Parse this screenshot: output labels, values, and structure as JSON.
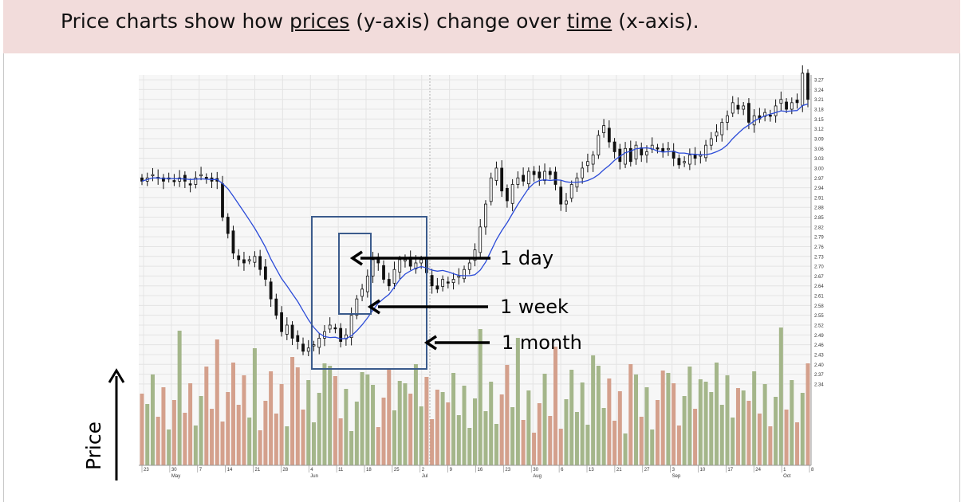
{
  "header": {
    "text_pre": "Price charts show how ",
    "text_prices": "prices",
    "text_mid": " (y-axis) change over ",
    "text_time": "time",
    "text_post": " (x-axis)."
  },
  "axis_side_label": "Price",
  "callouts": {
    "day": "1 day",
    "week": "1 week",
    "month": "1 month"
  },
  "colors": {
    "header_bg": "#f2dcdb",
    "ma_line": "#2b4bd8",
    "volume_up": "#a4b68a",
    "volume_down": "#d4a08c",
    "box": "#3b5b8c"
  },
  "chart_data": {
    "type": "candlestick",
    "title": "",
    "xlabel": "",
    "ylabel": "",
    "ylim": [
      2.33,
      3.28
    ],
    "y_ticks": [
      "3.27",
      "3.24",
      "3.21",
      "3.18",
      "3.15",
      "3.12",
      "3.09",
      "3.06",
      "3.03",
      "3.00",
      "2.97",
      "2.94",
      "2.91",
      "2.88",
      "2.85",
      "2.82",
      "2.79",
      "2.76",
      "2.73",
      "2.70",
      "2.67",
      "2.64",
      "2.61",
      "2.58",
      "2.55",
      "2.52",
      "2.49",
      "2.46",
      "2.43",
      "2.40",
      "2.37",
      "2.34"
    ],
    "x_day_ticks": [
      "23",
      "30",
      "7",
      "14",
      "21",
      "28",
      "4",
      "11",
      "18",
      "25",
      "2",
      "9",
      "16",
      "23",
      "30",
      "6",
      "13",
      "21",
      "27",
      "3",
      "10",
      "17",
      "24",
      "1",
      "8"
    ],
    "x_month_ticks": [
      "May",
      "Jun",
      "Jul",
      "Aug",
      "Sep",
      "Oct"
    ],
    "moving_average": "blue line",
    "volume": "bars below price (green up, red down)",
    "series": [
      {
        "values_close": [
          2.96,
          2.97,
          2.98,
          2.97,
          2.96,
          2.97,
          2.96,
          2.97,
          2.96,
          2.95,
          2.97,
          2.98,
          2.97,
          2.96,
          2.96,
          2.85,
          2.8,
          2.74,
          2.72,
          2.71,
          2.72,
          2.73,
          2.69,
          2.66,
          2.6,
          2.55,
          2.5,
          2.52,
          2.48,
          2.47,
          2.44,
          2.45,
          2.46,
          2.48,
          2.5,
          2.52,
          2.51,
          2.47,
          2.49,
          2.55,
          2.6,
          2.63,
          2.67,
          2.72,
          2.71,
          2.66,
          2.64,
          2.69,
          2.72,
          2.72,
          2.7,
          2.71,
          2.72,
          2.68,
          2.64,
          2.63,
          2.66,
          2.65,
          2.66,
          2.67,
          2.69,
          2.71,
          2.75,
          2.82,
          2.89,
          2.97,
          3.0,
          2.93,
          2.9,
          2.95,
          2.97,
          2.96,
          2.99,
          2.98,
          2.97,
          2.99,
          2.98,
          2.95,
          2.89,
          2.9,
          2.95,
          2.97,
          3.0,
          3.02,
          3.04,
          3.1,
          3.13,
          3.08,
          3.05,
          3.02,
          3.06,
          3.02,
          3.07,
          3.04,
          3.05,
          3.07,
          3.06,
          3.05,
          3.06,
          3.03,
          3.01,
          3.02,
          3.04,
          3.03,
          3.04,
          3.07,
          3.09,
          3.11,
          3.14,
          3.16,
          3.2,
          3.18,
          3.19,
          3.14,
          3.16,
          3.15,
          3.17,
          3.16,
          3.19,
          3.21,
          3.18,
          3.2,
          3.2,
          3.29,
          3.21
        ]
      }
    ]
  }
}
